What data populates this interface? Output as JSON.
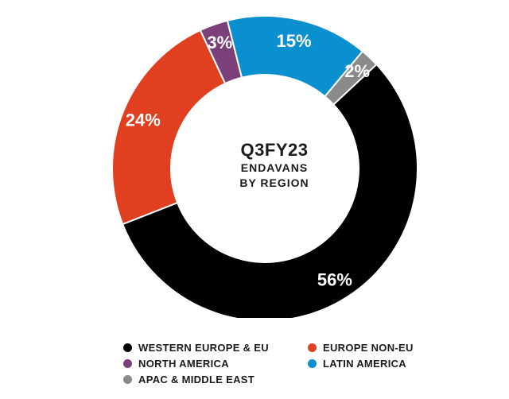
{
  "center": {
    "title": "Q3FY23",
    "line1": "ENDAVANS",
    "line2": "BY REGION"
  },
  "chart_data": {
    "type": "pie",
    "donut": true,
    "title": "Q3FY23 ENDAVANS BY REGION",
    "legend_position": "bottom",
    "slices": [
      {
        "label": "WESTERN EUROPE & EU",
        "value": 56,
        "display": "56%",
        "color": "#000000"
      },
      {
        "label": "EUROPE NON-EU",
        "value": 24,
        "display": "24%",
        "color": "#e0401f"
      },
      {
        "label": "NORTH AMERICA",
        "value": 3,
        "display": "3%",
        "color": "#7b3f79"
      },
      {
        "label": "LATIN AMERICA",
        "value": 15,
        "display": "15%",
        "color": "#0a8fcf"
      },
      {
        "label": "APAC & MIDDLE EAST",
        "value": 2,
        "display": "2%",
        "color": "#8a8a8a"
      }
    ],
    "draw_order": [
      0,
      1,
      2,
      3,
      4
    ]
  },
  "legend": [
    {
      "label": "WESTERN EUROPE & EU",
      "color": "#000000"
    },
    {
      "label": "EUROPE NON-EU",
      "color": "#e0401f"
    },
    {
      "label": "NORTH AMERICA",
      "color": "#7b3f79"
    },
    {
      "label": "LATIN AMERICA",
      "color": "#0a8fcf"
    },
    {
      "label": "APAC & MIDDLE EAST",
      "color": "#8a8a8a"
    }
  ]
}
